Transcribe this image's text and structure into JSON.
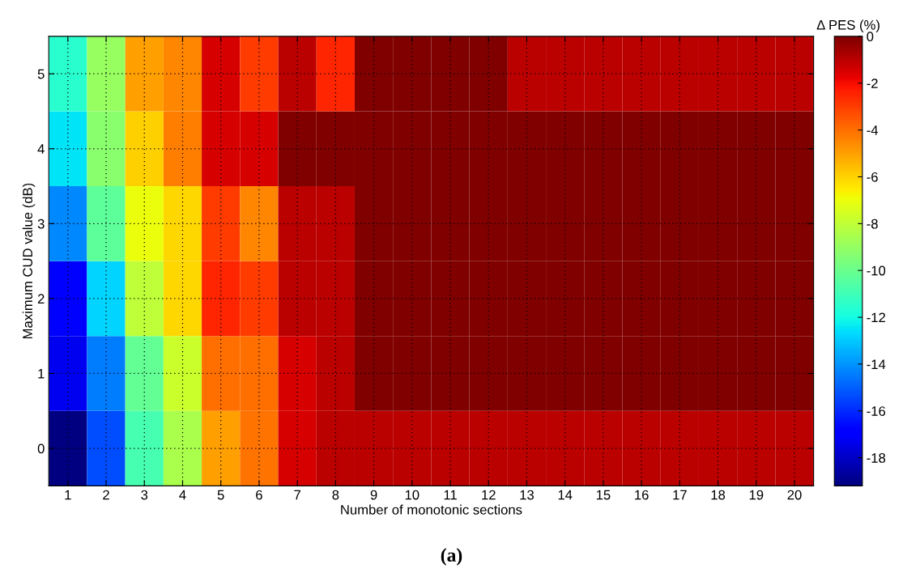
{
  "chart_data": {
    "type": "heatmap",
    "xlabel": "Number of monotonic sections",
    "ylabel": "Maximum CUD value (dB)",
    "clabel": "Δ PES (%)",
    "annotations": [
      "(a)"
    ],
    "categories": [
      "1",
      "2",
      "3",
      "4",
      "5",
      "6",
      "7",
      "8",
      "9",
      "10",
      "11",
      "12",
      "13",
      "14",
      "15",
      "16",
      "17",
      "18",
      "19",
      "20"
    ],
    "y_categories": [
      "5",
      "4",
      "3",
      "2",
      "1",
      "0"
    ],
    "cells": [
      [
        -11.5,
        -9,
        -5,
        -4.5,
        -1.5,
        -3,
        -1,
        -2.5,
        0,
        0,
        0,
        0,
        -1,
        -1,
        -1,
        -1,
        -1,
        -1,
        -1,
        -1
      ],
      [
        -12.5,
        -9.3,
        -6,
        -4.3,
        -1.5,
        -1.5,
        0,
        0,
        0,
        0,
        0,
        0,
        0,
        0,
        0,
        0,
        0,
        0,
        0,
        0
      ],
      [
        -14.2,
        -10.3,
        -7,
        -6.1,
        -3,
        -4.5,
        -1,
        -1,
        0,
        0,
        0,
        0,
        0,
        0,
        0,
        0,
        0,
        0,
        0,
        0
      ],
      [
        -17,
        -12.8,
        -8.1,
        -6.1,
        -2.5,
        -3,
        -1,
        -1,
        0,
        0,
        0,
        0,
        0,
        0,
        0,
        0,
        0,
        0,
        0,
        0
      ],
      [
        -17.3,
        -14.4,
        -10.2,
        -7.8,
        -4,
        -4,
        -1.5,
        -1,
        0,
        0,
        0,
        0,
        0,
        0,
        0,
        0,
        0,
        0,
        0,
        0
      ],
      [
        -19.2,
        -15.3,
        -10.8,
        -8.5,
        -5,
        -4.1,
        -1.5,
        -1,
        -1,
        -1,
        -1,
        -1,
        -1,
        -1,
        -1,
        -1,
        -1,
        -1,
        -1,
        -1
      ]
    ],
    "clim": [
      -19.2,
      0
    ],
    "cticks": [
      -18,
      -16,
      -14,
      -12,
      -10,
      -8,
      -6,
      -4,
      -2,
      0
    ],
    "grid": true
  }
}
